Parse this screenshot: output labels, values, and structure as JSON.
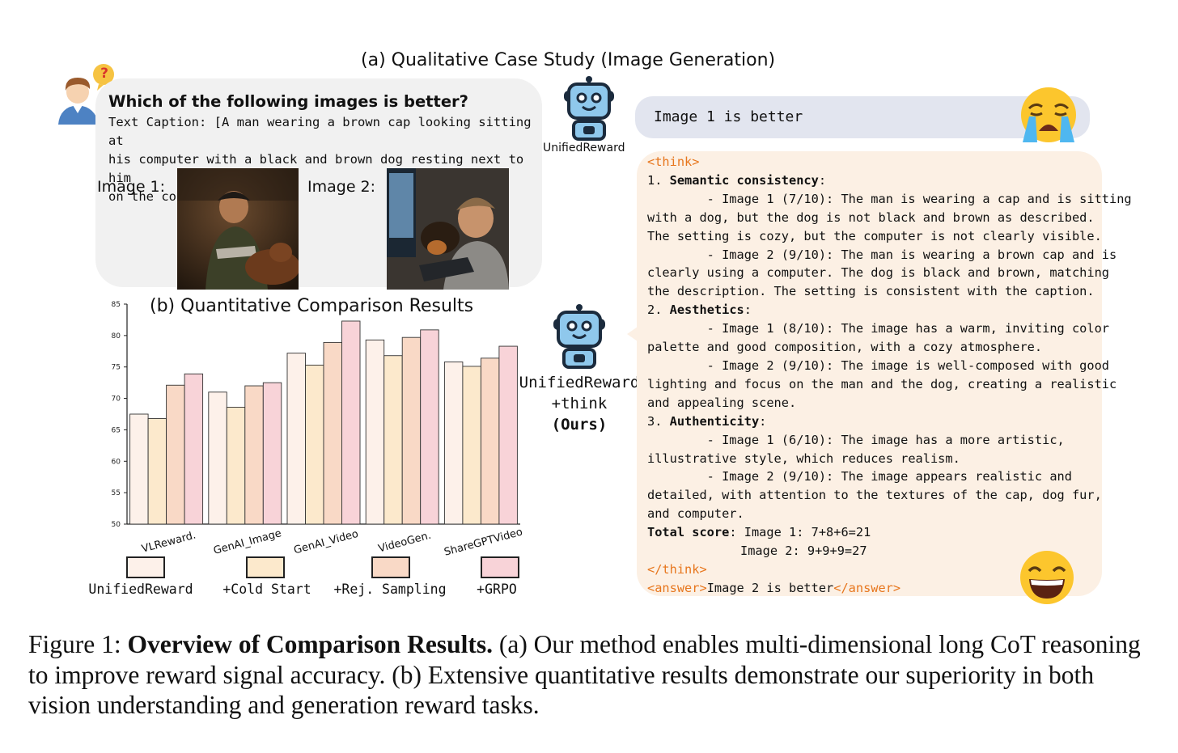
{
  "panel_a": {
    "title": "(a) Qualitative Case Study (Image Generation)",
    "question": "Which of the following images is better?",
    "caption_lines": [
      "Text Caption: [A man wearing a brown cap looking sitting at",
      "his computer with a black and brown dog resting next to him",
      "on the couch.]"
    ],
    "image1_label": "Image 1:",
    "image2_label": "Image 2:",
    "question_mark": "?",
    "bot1_label": "UnifiedReward",
    "short_answer": "Image 1 is better",
    "bot2_label_lines": [
      "UnifiedReward",
      "+think",
      "(Ours)"
    ],
    "think_open": "<think>",
    "sections": [
      {
        "num": "1.",
        "title": "Semantic consistency",
        "suffix": ":"
      },
      {
        "num": "2.",
        "title": "Aesthetics",
        "suffix": ":"
      },
      {
        "num": "3.",
        "title": "Authenticity",
        "suffix": ":"
      }
    ],
    "reasoning_lines": [
      "        - Image 1 (7/10): The man is wearing a cap and is sitting",
      "with a dog, but the dog is not black and brown as described.",
      "The setting is cozy, but the computer is not clearly visible.",
      "        - Image 2 (9/10): The man is wearing a brown cap and is",
      "clearly using a computer. The dog is black and brown, matching",
      "the description. The setting is consistent with the caption.",
      "        - Image 1 (8/10): The image has a warm, inviting color",
      "palette and good composition, with a cozy atmosphere.",
      "        - Image 2 (9/10): The image is well-composed with good",
      "lighting and focus on the man and the dog, creating a realistic",
      "and appealing scene.",
      "        - Image 1 (6/10): The image has a more artistic,",
      "illustrative style, which reduces realism.",
      "        - Image 2 (9/10): The image appears realistic and",
      "detailed, with attention to the textures of the cap, dog fur,",
      "and computer."
    ],
    "total_label": "Total score",
    "total_line1": ": Image 1: 7+8+6=21",
    "total_line2": "Image 2: 9+9+9=27",
    "think_close": "</think>",
    "answer_open": "<answer>",
    "answer_text": "Image 2 is better",
    "answer_close": "</answer>",
    "colors": {
      "think_tag": "#e7761d",
      "question_bubble": "#f1f1f1",
      "short_bubble": "#e2e5ef",
      "long_bubble": "#fcf0e4"
    }
  },
  "panel_b": {
    "title": "(b) Quantitative Comparison Results"
  },
  "chart_data": {
    "type": "bar",
    "title": "(b) Quantitative Comparison Results",
    "categories": [
      "VLReward.",
      "GenAI_Image",
      "GenAI_Video",
      "VideoGen.",
      "ShareGPTVideo"
    ],
    "ylim": [
      50,
      85
    ],
    "yticks": [
      50,
      55,
      60,
      65,
      70,
      75,
      80,
      85
    ],
    "xlabel": "",
    "ylabel": "",
    "grid": false,
    "legend_position": "bottom",
    "series": [
      {
        "name": "UnifiedReward",
        "color": "#fdf1ea",
        "values": [
          67.5,
          71.0,
          77.2,
          79.3,
          75.8
        ]
      },
      {
        "name": "+Cold Start",
        "color": "#fce9cc",
        "values": [
          66.8,
          68.6,
          75.3,
          76.8,
          75.1
        ]
      },
      {
        "name": "+Rej. Sampling",
        "color": "#f9d9c6",
        "values": [
          72.1,
          72.0,
          78.9,
          79.7,
          76.4
        ]
      },
      {
        "name": "+GRPO",
        "color": "#f8d3d8",
        "values": [
          73.9,
          72.5,
          82.3,
          80.9,
          78.3
        ]
      }
    ]
  },
  "figure_caption": {
    "prefix": "Figure 1: ",
    "bold": "Overview of Comparison Results.",
    "text": " (a) Our method enables multi-dimensional long CoT reasoning to improve reward signal accuracy.  (b) Extensive quantitative results demonstrate our superiority in both vision understanding and generation reward tasks."
  }
}
